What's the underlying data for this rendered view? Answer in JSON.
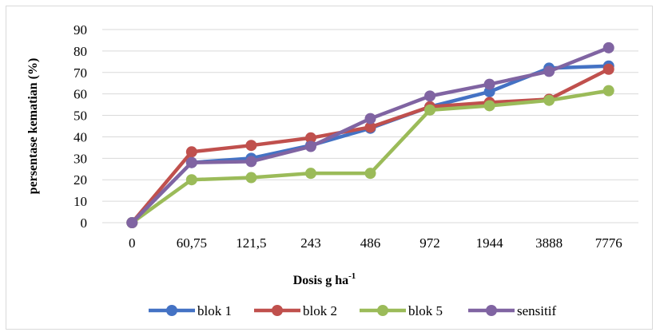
{
  "chart_data": {
    "type": "line",
    "categories": [
      "0",
      "60,75",
      "121,5",
      "243",
      "486",
      "972",
      "1944",
      "3888",
      "7776"
    ],
    "series": [
      {
        "name": "blok 1",
        "color": "#4472c4",
        "values": [
          0,
          28,
          30,
          36,
          44,
          54,
          61,
          72,
          73
        ]
      },
      {
        "name": "blok 2",
        "color": "#c0504d",
        "values": [
          0,
          33,
          36,
          39.5,
          44.5,
          54,
          56,
          57.5,
          71.5
        ]
      },
      {
        "name": "blok 5",
        "color": "#9bbb59",
        "values": [
          0,
          20,
          21,
          23,
          23,
          52.5,
          54.5,
          57,
          61.5
        ]
      },
      {
        "name": "sensitif",
        "color": "#8064a2",
        "values": [
          0,
          28,
          28.5,
          35.5,
          48.5,
          59,
          64.5,
          70.5,
          81.5
        ]
      }
    ],
    "xlabel": "Dosis g ha",
    "xlabel_sup": "-1",
    "ylabel": "persentase kematian (%)",
    "ylim": [
      0,
      90
    ],
    "yticks": [
      0,
      10,
      20,
      30,
      40,
      50,
      60,
      70,
      80,
      90
    ],
    "grid": true,
    "legend_position": "bottom"
  }
}
